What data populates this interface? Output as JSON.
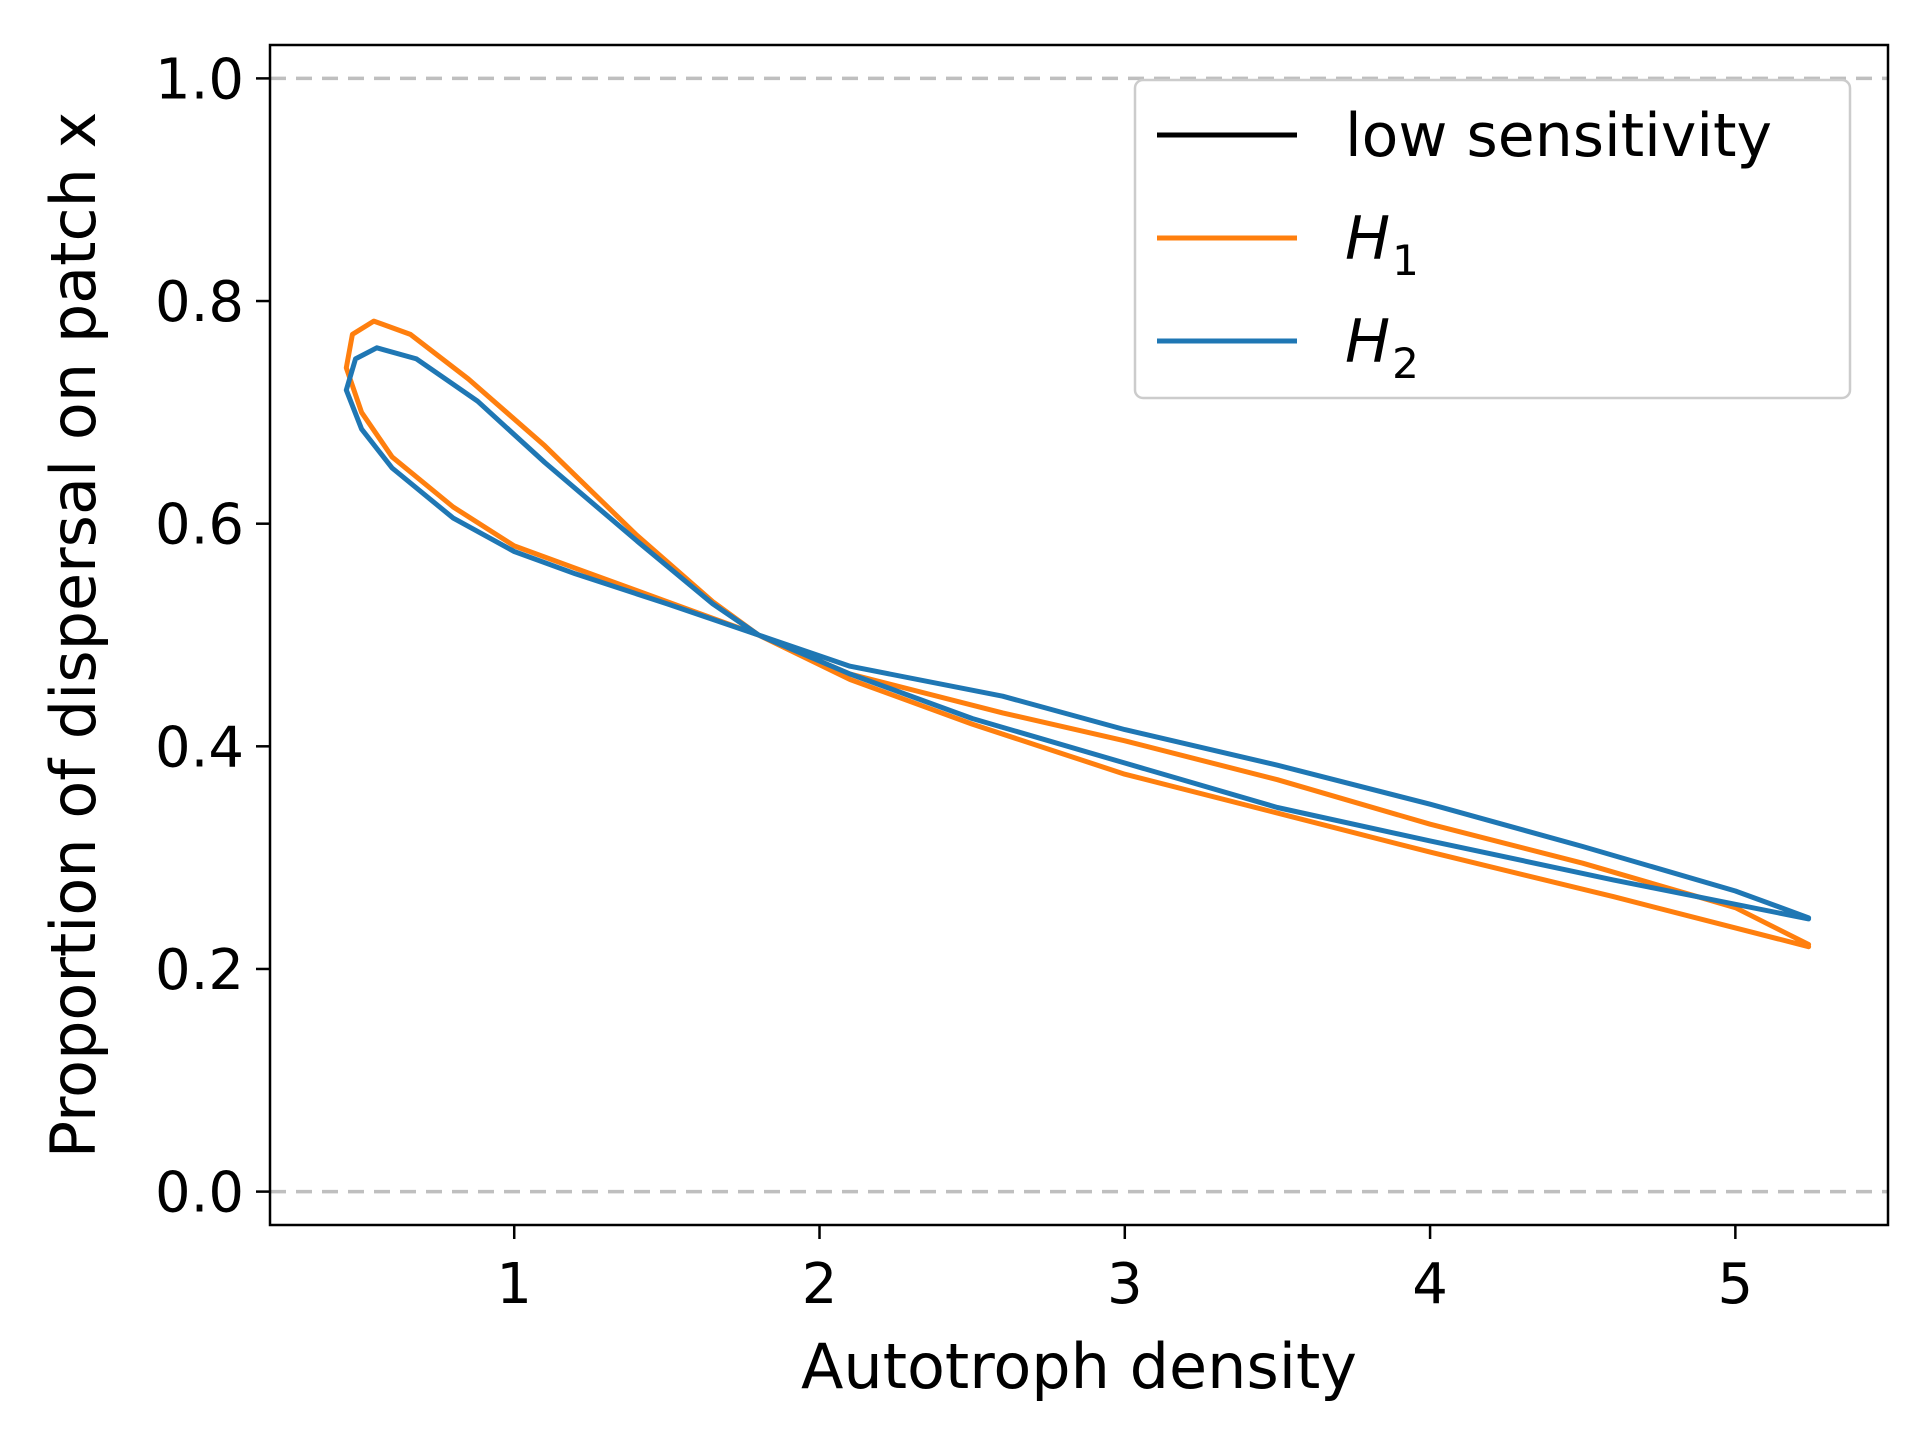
{
  "chart_data": {
    "type": "line",
    "title": "",
    "xlabel": "Autotroph density",
    "ylabel": "Proportion of dispersal on patch x",
    "xlim": [
      0.2,
      5.5
    ],
    "ylim": [
      -0.03,
      1.03
    ],
    "x_ticks": [
      1,
      2,
      3,
      4,
      5
    ],
    "y_ticks": [
      0.0,
      0.2,
      0.4,
      0.6,
      0.8,
      1.0
    ],
    "x_tick_labels": [
      "1",
      "2",
      "3",
      "4",
      "5"
    ],
    "y_tick_labels": [
      "0.0",
      "0.2",
      "0.4",
      "0.6",
      "0.8",
      "1.0"
    ],
    "reference_lines": [
      {
        "y": 0.0,
        "style": "dashed",
        "color": "#bfbfbf"
      },
      {
        "y": 1.0,
        "style": "dashed",
        "color": "#bfbfbf"
      }
    ],
    "grid": false,
    "legend_position": "top-right",
    "series": [
      {
        "name": "low sensitivity",
        "legend_main": "low sensitivity",
        "legend_sub": "",
        "color": "#000000",
        "points": []
      },
      {
        "name": "H1",
        "legend_main": "H",
        "legend_sub": "1",
        "color": "#ff7f0e",
        "points": [
          [
            5.24,
            0.22
          ],
          [
            4.6,
            0.265
          ],
          [
            4.0,
            0.305
          ],
          [
            3.5,
            0.34
          ],
          [
            3.0,
            0.375
          ],
          [
            2.5,
            0.42
          ],
          [
            2.1,
            0.46
          ],
          [
            1.8,
            0.5
          ],
          [
            1.5,
            0.53
          ],
          [
            1.2,
            0.56
          ],
          [
            1.0,
            0.58
          ],
          [
            0.8,
            0.615
          ],
          [
            0.6,
            0.66
          ],
          [
            0.5,
            0.7
          ],
          [
            0.45,
            0.74
          ],
          [
            0.47,
            0.77
          ],
          [
            0.54,
            0.782
          ],
          [
            0.66,
            0.77
          ],
          [
            0.85,
            0.73
          ],
          [
            1.1,
            0.67
          ],
          [
            1.4,
            0.59
          ],
          [
            1.65,
            0.53
          ],
          [
            1.8,
            0.5
          ],
          [
            2.1,
            0.465
          ],
          [
            2.6,
            0.43
          ],
          [
            3.0,
            0.405
          ],
          [
            3.5,
            0.37
          ],
          [
            4.0,
            0.33
          ],
          [
            4.5,
            0.295
          ],
          [
            5.0,
            0.255
          ],
          [
            5.24,
            0.222
          ]
        ]
      },
      {
        "name": "H2",
        "legend_main": "H",
        "legend_sub": "2",
        "color": "#1f77b4",
        "points": [
          [
            5.24,
            0.245
          ],
          [
            4.6,
            0.28
          ],
          [
            4.0,
            0.315
          ],
          [
            3.5,
            0.345
          ],
          [
            3.0,
            0.385
          ],
          [
            2.5,
            0.425
          ],
          [
            2.1,
            0.465
          ],
          [
            1.8,
            0.5
          ],
          [
            1.5,
            0.528
          ],
          [
            1.2,
            0.555
          ],
          [
            1.0,
            0.575
          ],
          [
            0.8,
            0.605
          ],
          [
            0.6,
            0.65
          ],
          [
            0.5,
            0.685
          ],
          [
            0.45,
            0.72
          ],
          [
            0.48,
            0.748
          ],
          [
            0.55,
            0.758
          ],
          [
            0.68,
            0.748
          ],
          [
            0.88,
            0.71
          ],
          [
            1.1,
            0.655
          ],
          [
            1.4,
            0.585
          ],
          [
            1.65,
            0.528
          ],
          [
            1.8,
            0.5
          ],
          [
            2.1,
            0.472
          ],
          [
            2.6,
            0.445
          ],
          [
            3.0,
            0.415
          ],
          [
            3.5,
            0.383
          ],
          [
            4.0,
            0.348
          ],
          [
            4.5,
            0.31
          ],
          [
            5.0,
            0.27
          ],
          [
            5.24,
            0.246
          ]
        ]
      }
    ]
  }
}
